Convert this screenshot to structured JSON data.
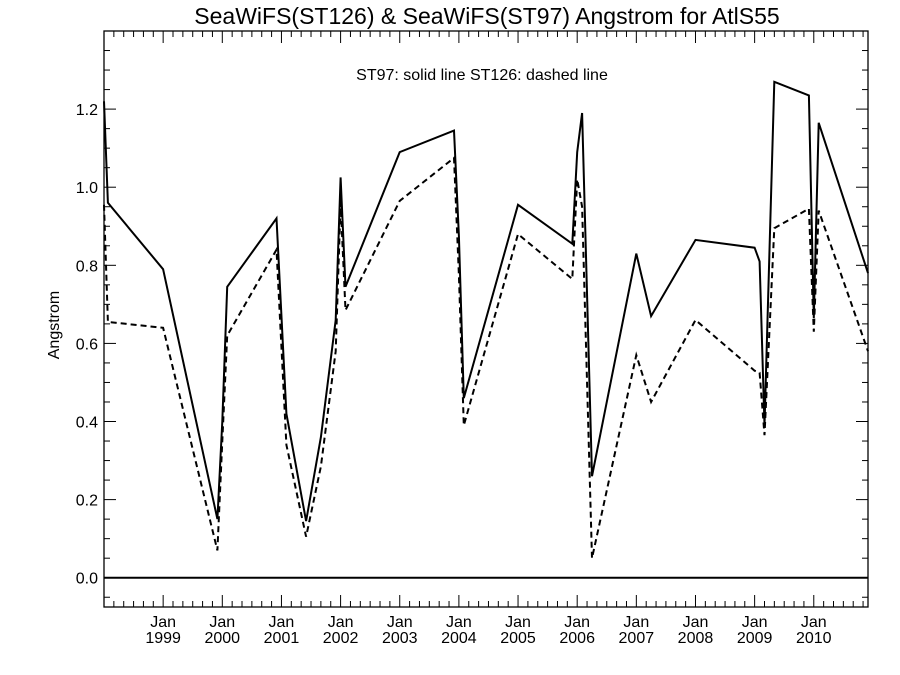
{
  "chart_data": {
    "type": "line",
    "title": "SeaWiFS(ST126) & SeaWiFS(ST97)  Angstrom for AtlS55",
    "ylabel": "Angstrom",
    "xlabel": "",
    "annotation": "ST97: solid line   ST126: dashed line",
    "ylim": [
      -0.075,
      1.4
    ],
    "xlim": [
      "1998-01-01",
      "2010-12-01"
    ],
    "y_ticks": [
      {
        "value": 0.0,
        "label": "0.0"
      },
      {
        "value": 0.2,
        "label": "0.2"
      },
      {
        "value": 0.4,
        "label": "0.4"
      },
      {
        "value": 0.6,
        "label": "0.6"
      },
      {
        "value": 0.8,
        "label": "0.8"
      },
      {
        "value": 1.0,
        "label": "1.0"
      },
      {
        "value": 1.2,
        "label": "1.2"
      }
    ],
    "x_ticks": [
      {
        "value": "1999-01-01",
        "month": "Jan",
        "year": "1999"
      },
      {
        "value": "2000-01-01",
        "month": "Jan",
        "year": "2000"
      },
      {
        "value": "2001-01-01",
        "month": "Jan",
        "year": "2001"
      },
      {
        "value": "2002-01-01",
        "month": "Jan",
        "year": "2002"
      },
      {
        "value": "2003-01-01",
        "month": "Jan",
        "year": "2003"
      },
      {
        "value": "2004-01-01",
        "month": "Jan",
        "year": "2004"
      },
      {
        "value": "2005-01-01",
        "month": "Jan",
        "year": "2005"
      },
      {
        "value": "2006-01-01",
        "month": "Jan",
        "year": "2006"
      },
      {
        "value": "2007-01-01",
        "month": "Jan",
        "year": "2007"
      },
      {
        "value": "2008-01-01",
        "month": "Jan",
        "year": "2008"
      },
      {
        "value": "2009-01-01",
        "month": "Jan",
        "year": "2009"
      },
      {
        "value": "2010-01-01",
        "month": "Jan",
        "year": "2010"
      }
    ],
    "reference_line": 0.0,
    "grid": false,
    "series": [
      {
        "name": "ST97",
        "line_style": "solid",
        "color": "#000000",
        "x": [
          "1998-01-01",
          "1998-01-25",
          "1999-01-01",
          "1999-12-01",
          "2000-01-01",
          "2000-02-01",
          "2000-12-01",
          "2001-02-01",
          "2001-06-01",
          "2001-09-01",
          "2001-12-01",
          "2002-01-01",
          "2002-02-01",
          "2003-01-01",
          "2003-12-01",
          "2004-01-01",
          "2004-02-01",
          "2005-01-01",
          "2005-12-01",
          "2006-01-01",
          "2006-02-01",
          "2006-04-01",
          "2007-01-01",
          "2007-04-01",
          "2008-01-01",
          "2009-01-01",
          "2009-02-01",
          "2009-03-01",
          "2009-05-01",
          "2009-12-01",
          "2010-01-01",
          "2010-02-01",
          "2010-12-01"
        ],
        "values": [
          1.22,
          0.96,
          0.79,
          0.15,
          0.4,
          0.745,
          0.92,
          0.42,
          0.145,
          0.36,
          0.66,
          1.025,
          0.745,
          1.09,
          1.145,
          0.875,
          0.46,
          0.955,
          0.855,
          1.09,
          1.19,
          0.26,
          0.83,
          0.67,
          0.865,
          0.845,
          0.81,
          0.39,
          1.27,
          1.235,
          0.665,
          1.165,
          0.78
        ]
      },
      {
        "name": "ST126",
        "line_style": "dashed",
        "color": "#000000",
        "x": [
          "1998-01-01",
          "1998-01-25",
          "1999-01-01",
          "1999-12-01",
          "2000-01-01",
          "2000-02-01",
          "2000-12-01",
          "2001-02-01",
          "2001-06-01",
          "2001-09-01",
          "2001-12-01",
          "2002-01-01",
          "2002-02-01",
          "2003-01-01",
          "2003-12-01",
          "2004-01-01",
          "2004-02-01",
          "2005-01-01",
          "2005-12-01",
          "2006-01-01",
          "2006-02-01",
          "2006-04-01",
          "2007-01-01",
          "2007-04-01",
          "2008-01-01",
          "2009-01-01",
          "2009-02-01",
          "2009-03-01",
          "2009-05-01",
          "2009-12-01",
          "2010-01-01",
          "2010-02-01",
          "2010-12-01"
        ],
        "values": [
          0.955,
          0.655,
          0.64,
          0.07,
          0.35,
          0.62,
          0.84,
          0.34,
          0.105,
          0.285,
          0.58,
          0.96,
          0.685,
          0.965,
          1.075,
          0.775,
          0.39,
          0.88,
          0.765,
          1.02,
          0.95,
          0.05,
          0.57,
          0.45,
          0.66,
          0.53,
          0.525,
          0.365,
          0.895,
          0.945,
          0.63,
          0.94,
          0.58
        ]
      }
    ]
  }
}
